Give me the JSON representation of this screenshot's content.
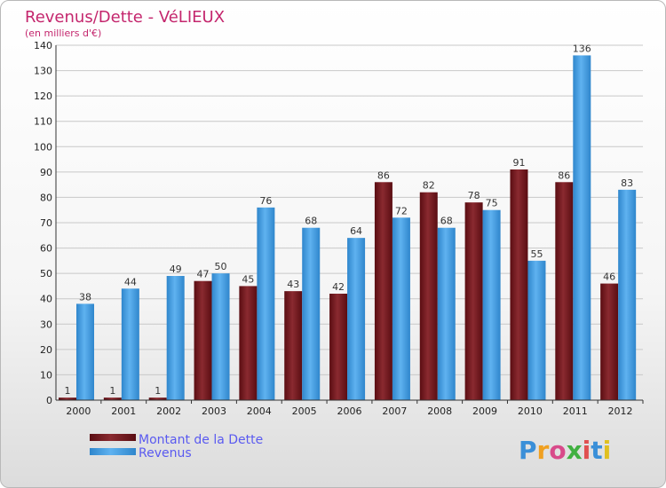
{
  "chart_data": {
    "type": "bar",
    "title": "Revenus/Dette - VéLIEUX",
    "subtitle": "(en milliers d'€)",
    "xlabel": "",
    "ylabel": "",
    "ylim": [
      0,
      140
    ],
    "ytick_step": 10,
    "categories": [
      "2000",
      "2001",
      "2002",
      "2003",
      "2004",
      "2005",
      "2006",
      "2007",
      "2008",
      "2009",
      "2010",
      "2011",
      "2012"
    ],
    "series": [
      {
        "name": "Montant de la Dette",
        "color": "#7a1e24",
        "values": [
          1,
          1,
          1,
          47,
          45,
          43,
          42,
          86,
          82,
          78,
          91,
          86,
          46
        ]
      },
      {
        "name": "Revenus",
        "color": "#4aa3e6",
        "values": [
          38,
          44,
          49,
          50,
          76,
          68,
          64,
          72,
          68,
          75,
          55,
          136,
          83
        ]
      }
    ],
    "grid": true,
    "legend_position": "bottom-left"
  },
  "branding": {
    "logo_text": "Proxiti"
  }
}
